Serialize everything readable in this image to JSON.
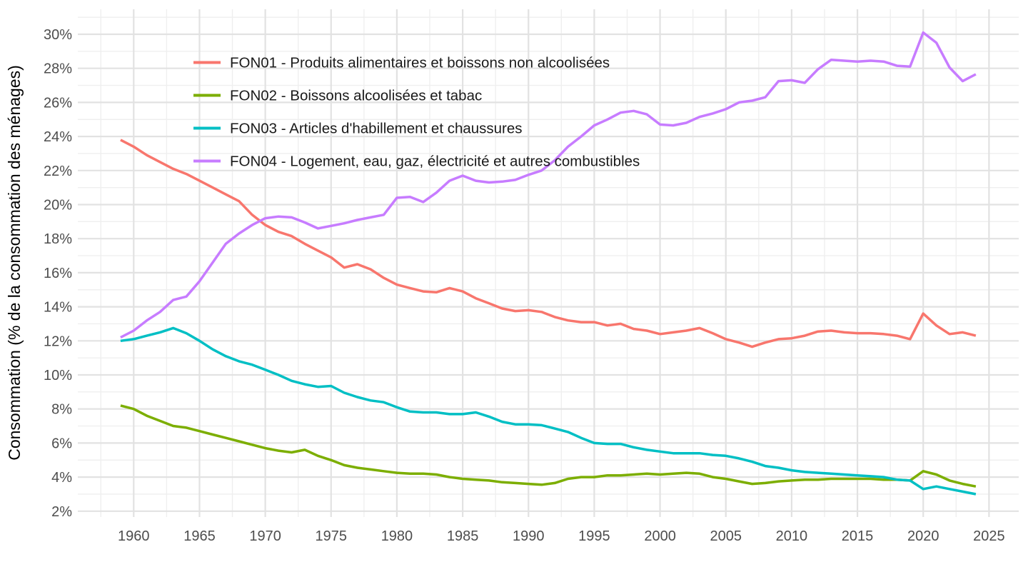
{
  "chart_data": {
    "type": "line",
    "title": "",
    "xlabel": "",
    "ylabel": "Consommation (% de la consommation des ménages)",
    "x_ticks": [
      1960,
      1965,
      1970,
      1975,
      1980,
      1985,
      1990,
      1995,
      2000,
      2005,
      2010,
      2015,
      2020,
      2025
    ],
    "y_ticks": [
      2,
      4,
      6,
      8,
      10,
      12,
      14,
      16,
      18,
      20,
      22,
      24,
      26,
      28,
      30
    ],
    "y_tick_suffix": "%",
    "xlim": [
      1955.75,
      2027.25
    ],
    "ylim": [
      1.6,
      31.5
    ],
    "grid": true,
    "legend_position": "top-left-inside",
    "x": [
      1959,
      1960,
      1961,
      1962,
      1963,
      1964,
      1965,
      1966,
      1967,
      1968,
      1969,
      1970,
      1971,
      1972,
      1973,
      1974,
      1975,
      1976,
      1977,
      1978,
      1979,
      1980,
      1981,
      1982,
      1983,
      1984,
      1985,
      1986,
      1987,
      1988,
      1989,
      1990,
      1991,
      1992,
      1993,
      1994,
      1995,
      1996,
      1997,
      1998,
      1999,
      2000,
      2001,
      2002,
      2003,
      2004,
      2005,
      2006,
      2007,
      2008,
      2009,
      2010,
      2011,
      2012,
      2013,
      2014,
      2015,
      2016,
      2017,
      2018,
      2019,
      2020,
      2021,
      2022,
      2023,
      2024
    ],
    "series": [
      {
        "name": "FON01 - Produits alimentaires et boissons non alcoolisées",
        "color": "#F8766D",
        "values": [
          23.8,
          23.4,
          22.9,
          22.5,
          22.1,
          21.8,
          21.4,
          21.0,
          20.6,
          20.2,
          19.4,
          18.8,
          18.4,
          18.15,
          17.7,
          17.3,
          16.9,
          16.3,
          16.5,
          16.2,
          15.7,
          15.3,
          15.1,
          14.9,
          14.85,
          15.1,
          14.9,
          14.5,
          14.2,
          13.9,
          13.75,
          13.8,
          13.7,
          13.4,
          13.2,
          13.1,
          13.1,
          12.9,
          13.0,
          12.7,
          12.6,
          12.4,
          12.5,
          12.6,
          12.75,
          12.45,
          12.1,
          11.9,
          11.65,
          11.9,
          12.1,
          12.15,
          12.3,
          12.55,
          12.6,
          12.5,
          12.45,
          12.45,
          12.4,
          12.3,
          12.1,
          13.6,
          12.9,
          12.4,
          12.5,
          12.3
        ]
      },
      {
        "name": "FON02 - Boissons alcoolisées et tabac",
        "color": "#7CAE00",
        "values": [
          8.2,
          8.0,
          7.6,
          7.3,
          7.0,
          6.9,
          6.7,
          6.5,
          6.3,
          6.1,
          5.9,
          5.7,
          5.55,
          5.45,
          5.6,
          5.25,
          5.0,
          4.7,
          4.55,
          4.45,
          4.35,
          4.25,
          4.2,
          4.2,
          4.15,
          4.0,
          3.9,
          3.85,
          3.8,
          3.7,
          3.65,
          3.6,
          3.55,
          3.65,
          3.9,
          4.0,
          4.0,
          4.1,
          4.1,
          4.15,
          4.2,
          4.15,
          4.2,
          4.25,
          4.2,
          4.0,
          3.9,
          3.75,
          3.6,
          3.65,
          3.75,
          3.8,
          3.85,
          3.85,
          3.9,
          3.9,
          3.9,
          3.9,
          3.85,
          3.85,
          3.8,
          4.35,
          4.15,
          3.8,
          3.6,
          3.45
        ]
      },
      {
        "name": "FON03 - Articles d'habillement et chaussures",
        "color": "#00BFC4",
        "values": [
          12.0,
          12.1,
          12.3,
          12.5,
          12.75,
          12.45,
          12.0,
          11.5,
          11.1,
          10.8,
          10.6,
          10.3,
          10.0,
          9.65,
          9.45,
          9.3,
          9.35,
          8.95,
          8.7,
          8.5,
          8.4,
          8.1,
          7.85,
          7.8,
          7.8,
          7.7,
          7.7,
          7.8,
          7.55,
          7.25,
          7.1,
          7.1,
          7.05,
          6.85,
          6.65,
          6.3,
          6.0,
          5.95,
          5.95,
          5.75,
          5.6,
          5.5,
          5.4,
          5.4,
          5.4,
          5.3,
          5.25,
          5.1,
          4.9,
          4.65,
          4.55,
          4.4,
          4.3,
          4.25,
          4.2,
          4.15,
          4.1,
          4.05,
          4.0,
          3.85,
          3.8,
          3.3,
          3.45,
          3.3,
          3.15,
          3.0
        ]
      },
      {
        "name": "FON04 - Logement, eau, gaz, électricité et autres combustibles",
        "color": "#C77CFF",
        "values": [
          12.2,
          12.6,
          13.2,
          13.7,
          14.4,
          14.6,
          15.5,
          16.6,
          17.7,
          18.3,
          18.8,
          19.2,
          19.3,
          19.25,
          18.95,
          18.6,
          18.75,
          18.9,
          19.1,
          19.25,
          19.4,
          20.4,
          20.45,
          20.15,
          20.7,
          21.4,
          21.7,
          21.4,
          21.3,
          21.35,
          21.45,
          21.75,
          22.0,
          22.6,
          23.4,
          24.0,
          24.65,
          25.0,
          25.4,
          25.5,
          25.3,
          24.7,
          24.65,
          24.8,
          25.15,
          25.35,
          25.6,
          26.0,
          26.1,
          26.3,
          27.25,
          27.3,
          27.15,
          27.95,
          28.5,
          28.45,
          28.4,
          28.45,
          28.4,
          28.15,
          28.1,
          30.1,
          29.5,
          28.05,
          27.25,
          27.65
        ]
      }
    ],
    "style": {
      "grid_major_color": "#E2E2E2",
      "grid_minor_color": "#EFEFEF",
      "tick_label_color": "#4D4D4D",
      "axis_title_color": "#000000",
      "legend_text_color": "#1A1A1A",
      "background": "#FFFFFF"
    }
  }
}
